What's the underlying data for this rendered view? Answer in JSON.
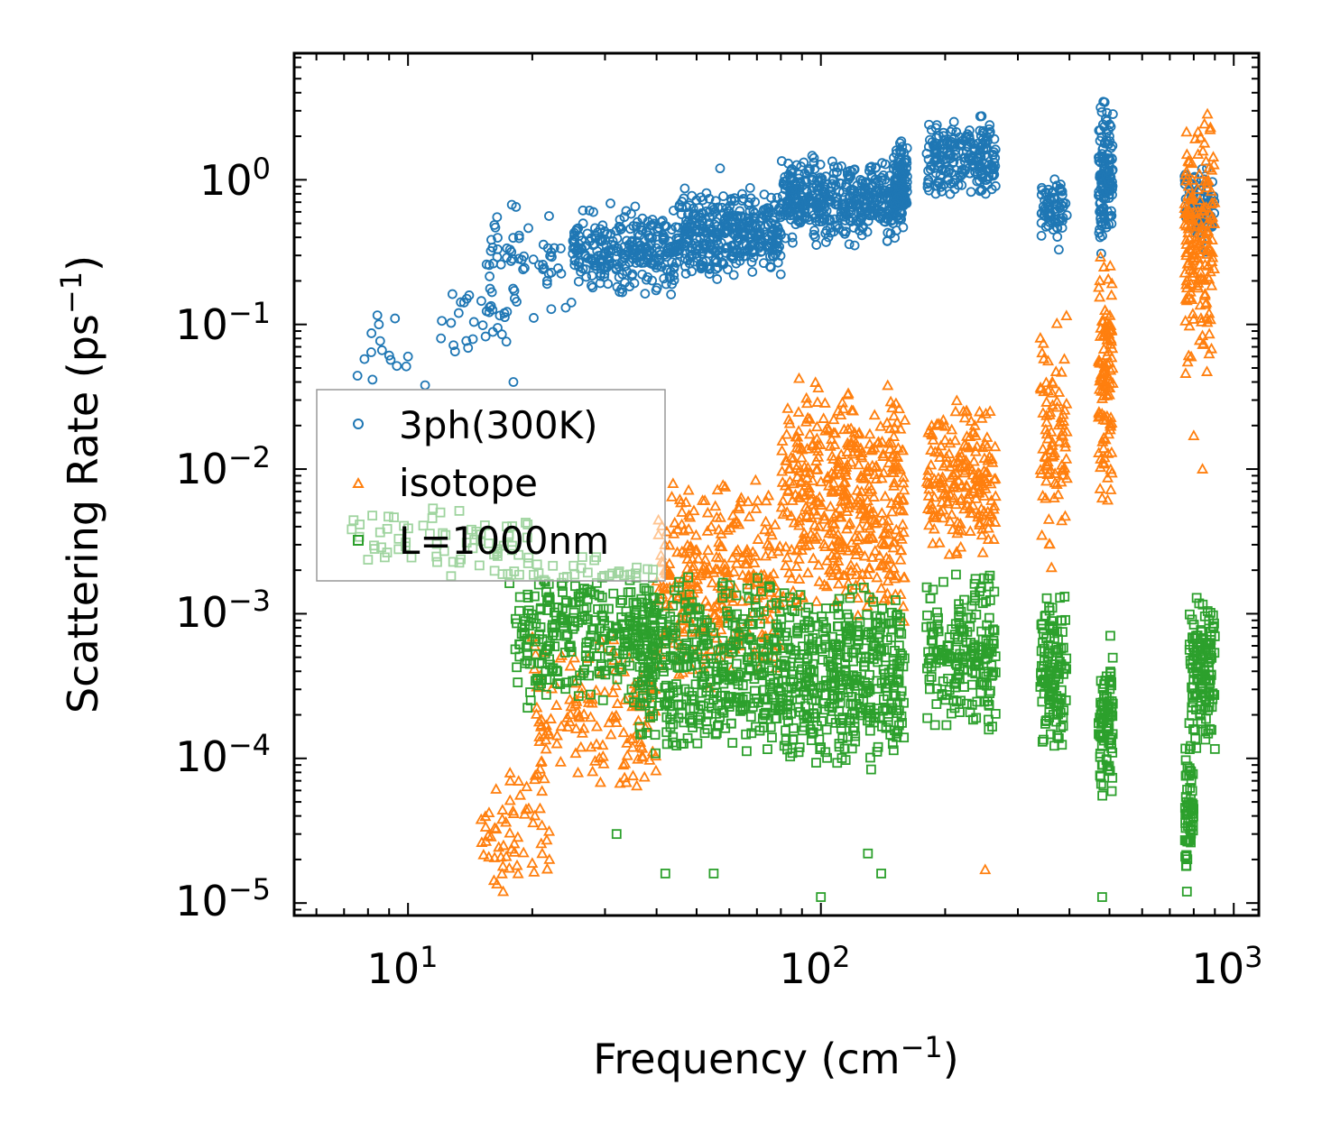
{
  "chart_data": {
    "type": "scatter",
    "title": "",
    "xlabel": "Frequency (cm",
    "xlabel_sup": "−1",
    "xlabel_suffix": ")",
    "ylabel": "Scattering Rate (ps",
    "ylabel_sup": "−1",
    "ylabel_suffix": ")",
    "xscale": "log",
    "yscale": "log",
    "xlim": [
      5.3,
      1150
    ],
    "ylim": [
      8.2e-06,
      7.5
    ],
    "grid": false,
    "legend_position": "center-left",
    "x_ticks": [
      {
        "value": 10,
        "base": "10",
        "exp": "1"
      },
      {
        "value": 100,
        "base": "10",
        "exp": "2"
      },
      {
        "value": 1000,
        "base": "10",
        "exp": "3"
      }
    ],
    "y_ticks": [
      {
        "value": 1,
        "base": "10",
        "exp": "0"
      },
      {
        "value": 0.1,
        "base": "10",
        "exp": "−1"
      },
      {
        "value": 0.01,
        "base": "10",
        "exp": "−2"
      },
      {
        "value": 0.001,
        "base": "10",
        "exp": "−3"
      },
      {
        "value": 0.0001,
        "base": "10",
        "exp": "−4"
      },
      {
        "value": 1e-05,
        "base": "10",
        "exp": "−5"
      }
    ],
    "series": [
      {
        "name": "3ph(300K)",
        "marker": "circle",
        "color": "#1f77b4",
        "clusters": [
          {
            "x": [
              7.5,
              10
            ],
            "y": [
              0.03,
              0.12
            ],
            "n": 12
          },
          {
            "x": [
              12,
              18
            ],
            "y": [
              0.05,
              0.2
            ],
            "n": 30
          },
          {
            "x": [
              15,
              25
            ],
            "y": [
              0.1,
              0.8
            ],
            "n": 60
          },
          {
            "x": [
              25,
              45
            ],
            "y": [
              0.15,
              0.7
            ],
            "n": 280
          },
          {
            "x": [
              45,
              80
            ],
            "y": [
              0.2,
              0.9
            ],
            "n": 380
          },
          {
            "x": [
              80,
              160
            ],
            "y": [
              0.35,
              1.5
            ],
            "n": 450
          },
          {
            "x": [
              150,
              162
            ],
            "y": [
              0.5,
              2.0
            ],
            "n": 90
          },
          {
            "x": [
              180,
              265
            ],
            "y": [
              0.7,
              2.8
            ],
            "n": 220
          },
          {
            "x": [
              340,
              395
            ],
            "y": [
              0.3,
              1.2
            ],
            "n": 70
          },
          {
            "x": [
              470,
              510
            ],
            "y": [
              0.3,
              4.0
            ],
            "n": 130
          },
          {
            "x": [
              760,
              900
            ],
            "y": [
              0.3,
              1.3
            ],
            "n": 90
          }
        ],
        "points": [
          [
            8.5,
            0.1
          ],
          [
            9.3,
            0.11
          ],
          [
            10,
            0.06
          ],
          [
            11,
            0.038
          ],
          [
            13,
            0.065
          ],
          [
            18,
            0.04
          ],
          [
            57,
            1.2
          ]
        ]
      },
      {
        "name": "isotope",
        "marker": "triangle",
        "color": "#ff7f0e",
        "clusters": [
          {
            "x": [
              15,
              22
            ],
            "y": [
              1.2e-05,
              0.0001
            ],
            "n": 60
          },
          {
            "x": [
              20,
              40
            ],
            "y": [
              5e-05,
              0.0008
            ],
            "n": 150
          },
          {
            "x": [
              40,
              80
            ],
            "y": [
              0.0003,
              0.01
            ],
            "n": 300
          },
          {
            "x": [
              80,
              160
            ],
            "y": [
              0.0008,
              0.045
            ],
            "n": 450
          },
          {
            "x": [
              180,
              265
            ],
            "y": [
              0.002,
              0.035
            ],
            "n": 200
          },
          {
            "x": [
              340,
              395
            ],
            "y": [
              0.002,
              0.12
            ],
            "n": 90
          },
          {
            "x": [
              470,
              510
            ],
            "y": [
              0.006,
              0.4
            ],
            "n": 110
          },
          {
            "x": [
              760,
              900
            ],
            "y": [
              0.04,
              3.0
            ],
            "n": 180
          }
        ],
        "points": [
          [
            17,
            1.2e-05
          ],
          [
            22,
            2e-05
          ],
          [
            250,
            1.7e-05
          ],
          [
            480,
            0.0063
          ],
          [
            840,
            0.01
          ],
          [
            800,
            0.017
          ]
        ]
      },
      {
        "name": "L=1000nm",
        "marker": "square",
        "color": "#2ca02c",
        "clusters": [
          {
            "x": [
              6.8,
              20
            ],
            "y": [
              0.0015,
              0.006
            ],
            "n": 70
          },
          {
            "x": [
              18,
              40
            ],
            "y": [
              0.0002,
              0.003
            ],
            "n": 300
          },
          {
            "x": [
              35,
              80
            ],
            "y": [
              0.0001,
              0.002
            ],
            "n": 420
          },
          {
            "x": [
              80,
              160
            ],
            "y": [
              8e-05,
              0.0018
            ],
            "n": 420
          },
          {
            "x": [
              180,
              265
            ],
            "y": [
              0.00012,
              0.0022
            ],
            "n": 200
          },
          {
            "x": [
              340,
              395
            ],
            "y": [
              0.0001,
              0.0015
            ],
            "n": 120
          },
          {
            "x": [
              470,
              510
            ],
            "y": [
              5e-05,
              0.0008
            ],
            "n": 90
          },
          {
            "x": [
              760,
              800
            ],
            "y": [
              1.5e-05,
              0.00015
            ],
            "n": 60
          },
          {
            "x": [
              780,
              900
            ],
            "y": [
              0.0001,
              0.0018
            ],
            "n": 140
          }
        ],
        "points": [
          [
            32,
            3e-05
          ],
          [
            42,
            1.6e-05
          ],
          [
            55,
            1.6e-05
          ],
          [
            100,
            1.1e-05
          ],
          [
            130,
            2.2e-05
          ],
          [
            140,
            1.6e-05
          ],
          [
            480,
            1.1e-05
          ],
          [
            770,
            1.2e-05
          ]
        ]
      }
    ]
  }
}
